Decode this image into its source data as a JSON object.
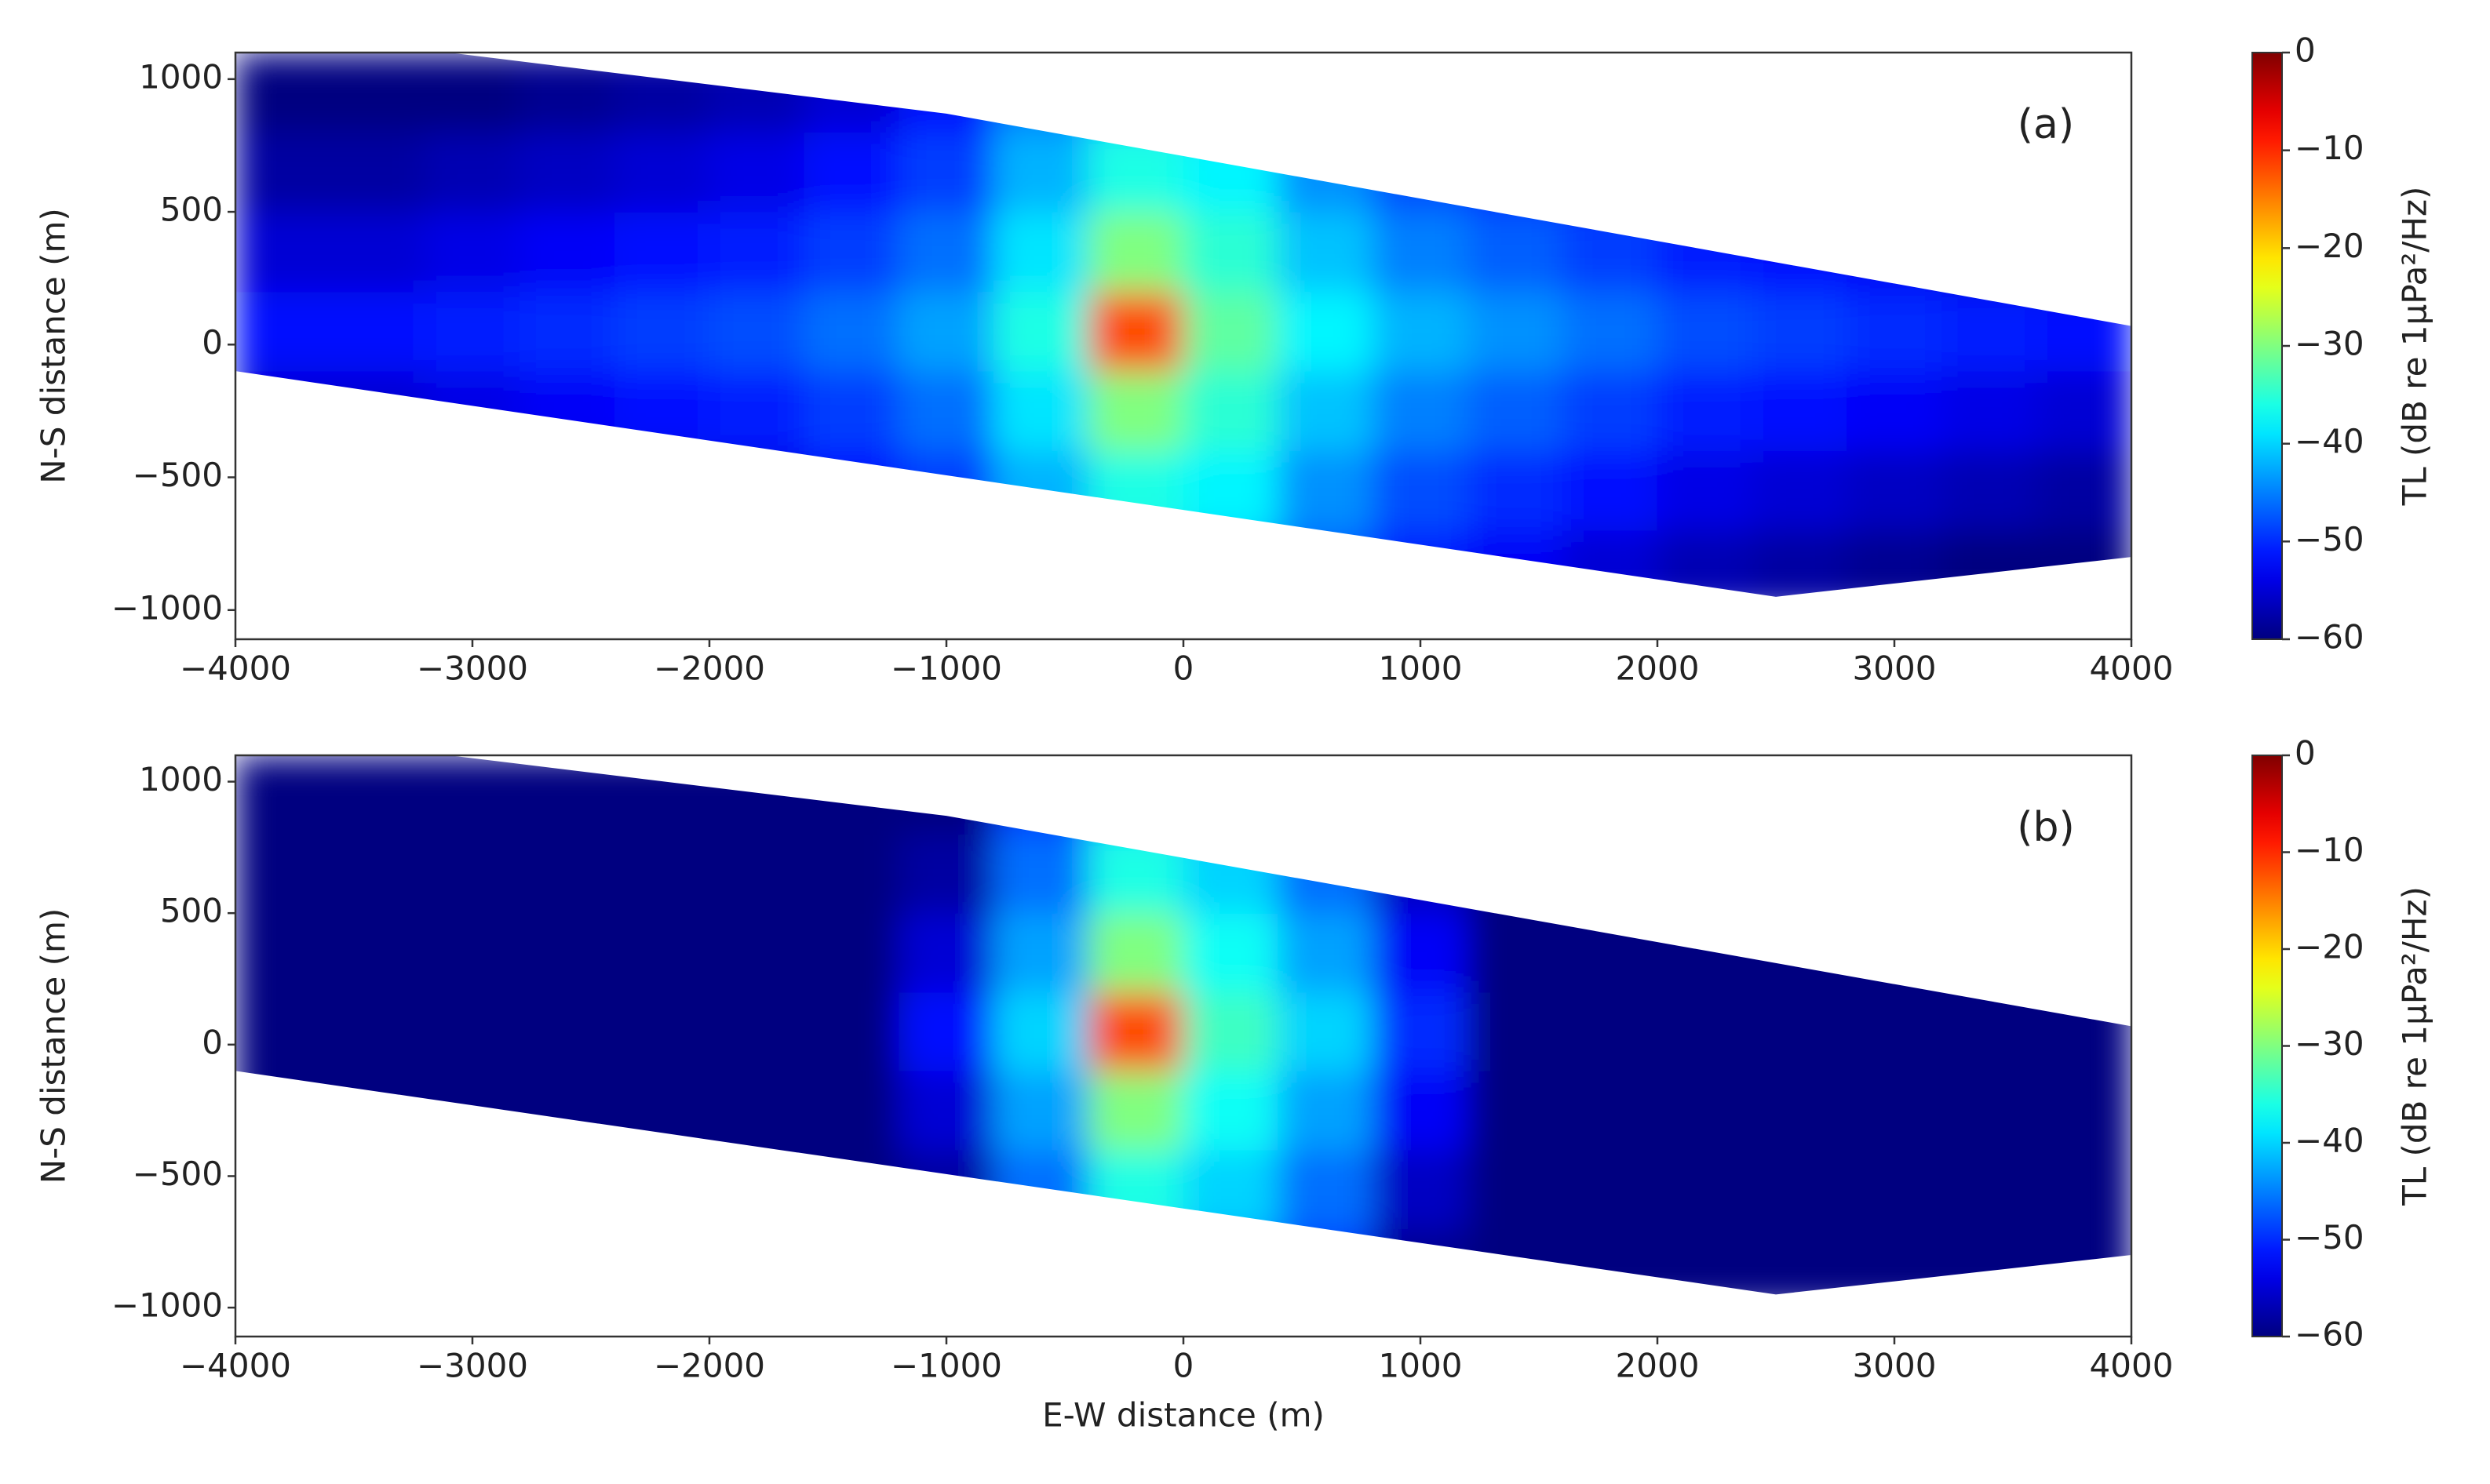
{
  "chart_data": [
    {
      "type": "heatmap",
      "panel_label": "(a)",
      "ylabel": "N-S distance (m)",
      "xlim": [
        -4000,
        4000
      ],
      "ylim": [
        -1110,
        1100
      ],
      "xticks": [
        {
          "value": -4000,
          "label": "−4000"
        },
        {
          "value": -3000,
          "label": "−3000"
        },
        {
          "value": -2000,
          "label": "−2000"
        },
        {
          "value": -1000,
          "label": "−1000"
        },
        0,
        1000,
        2000,
        3000,
        4000
      ],
      "yticks": [
        {
          "value": -1000,
          "label": "−1000"
        },
        {
          "value": -500,
          "label": "−500"
        },
        0,
        500,
        1000
      ],
      "boundary": {
        "x": [
          -4000,
          -3100,
          -1000,
          4000,
          4000,
          2500,
          -4000
        ],
        "y": [
          1100,
          1100,
          870,
          70,
          -800,
          -950,
          -100
        ]
      },
      "x_edges": [
        -4000,
        -3600,
        -3200,
        -2800,
        -2400,
        -2000,
        -1600,
        -1200,
        -800,
        -400,
        0,
        400,
        800,
        1200,
        1600,
        2000,
        2400,
        2800,
        3200,
        3600,
        4000
      ],
      "y_edges": [
        -1000,
        -700,
        -400,
        -100,
        200,
        500,
        800,
        1100
      ],
      "z": [
        [
          -60,
          -60,
          -60,
          -59,
          -58,
          -57,
          -55,
          -52,
          -45,
          -40,
          -41,
          -47,
          -51,
          -53,
          -55,
          -57,
          -58,
          -59,
          -60,
          -60
        ],
        [
          -58,
          -58,
          -57,
          -56,
          -55,
          -54,
          -52,
          -49,
          -42,
          -36,
          -38,
          -44,
          -48,
          -50,
          -52,
          -54,
          -55,
          -56,
          -57,
          -58
        ],
        [
          -55,
          -55,
          -54,
          -53,
          -52,
          -51,
          -49,
          -46,
          -39,
          -30,
          -35,
          -41,
          -45,
          -47,
          -49,
          -51,
          -52,
          -53,
          -54,
          -55
        ],
        [
          -52,
          -52,
          -51,
          -50,
          -49,
          -48,
          -46,
          -43,
          -36,
          -12,
          -32,
          -38,
          -42,
          -44,
          -46,
          -48,
          -49,
          -50,
          -51,
          -52
        ],
        [
          -55,
          -55,
          -54,
          -53,
          -52,
          -51,
          -49,
          -46,
          -39,
          -30,
          -35,
          -41,
          -45,
          -47,
          -49,
          -51,
          -52,
          -53,
          -54,
          -55
        ],
        [
          -58,
          -58,
          -57,
          -56,
          -55,
          -54,
          -52,
          -49,
          -42,
          -36,
          -38,
          -44,
          -48,
          -50,
          -52,
          -54,
          -55,
          -56,
          -57,
          -58
        ],
        [
          -60,
          -60,
          -60,
          -59,
          -58,
          -57,
          -55,
          -52,
          -45,
          -40,
          -41,
          -47,
          -51,
          -53,
          -55,
          -57,
          -58,
          -59,
          -60,
          -60
        ]
      ],
      "colorbar": {
        "label": "TL (dB re 1μPa²/Hz)",
        "colormap": "jet",
        "clim": [
          -60,
          0
        ],
        "ticks": [
          0,
          {
            "value": -10,
            "label": "−10"
          },
          {
            "value": -20,
            "label": "−20"
          },
          {
            "value": -30,
            "label": "−30"
          },
          {
            "value": -40,
            "label": "−40"
          },
          {
            "value": -50,
            "label": "−50"
          },
          {
            "value": -60,
            "label": "−60"
          }
        ]
      }
    },
    {
      "type": "heatmap",
      "panel_label": "(b)",
      "ylabel": "N-S distance (m)",
      "xlabel": "E-W distance (m)",
      "xlim": [
        -4000,
        4000
      ],
      "ylim": [
        -1110,
        1100
      ],
      "xticks": [
        {
          "value": -4000,
          "label": "−4000"
        },
        {
          "value": -3000,
          "label": "−3000"
        },
        {
          "value": -2000,
          "label": "−2000"
        },
        {
          "value": -1000,
          "label": "−1000"
        },
        0,
        1000,
        2000,
        3000,
        4000
      ],
      "yticks": [
        {
          "value": -1000,
          "label": "−1000"
        },
        {
          "value": -500,
          "label": "−500"
        },
        0,
        500,
        1000
      ],
      "boundary": {
        "x": [
          -4000,
          -3100,
          -1000,
          4000,
          4000,
          2500,
          -4000
        ],
        "y": [
          1100,
          1100,
          870,
          70,
          -800,
          -950,
          -100
        ]
      },
      "x_edges": [
        -4000,
        -3600,
        -3200,
        -2800,
        -2400,
        -2000,
        -1600,
        -1200,
        -800,
        -400,
        0,
        400,
        800,
        1200,
        1600,
        2000,
        2400,
        2800,
        3200,
        3600,
        4000
      ],
      "y_edges": [
        -1000,
        -700,
        -400,
        -100,
        200,
        500,
        800,
        1100
      ],
      "z": [
        [
          -60,
          -60,
          -60,
          -60,
          -60,
          -60,
          -60,
          -60,
          -49,
          -40,
          -43,
          -49,
          -59,
          -60,
          -60,
          -60,
          -60,
          -60,
          -60,
          -60
        ],
        [
          -60,
          -60,
          -60,
          -60,
          -60,
          -60,
          -60,
          -58,
          -46,
          -36,
          -40,
          -46,
          -56,
          -60,
          -60,
          -60,
          -60,
          -60,
          -60,
          -60
        ],
        [
          -60,
          -60,
          -60,
          -60,
          -60,
          -60,
          -60,
          -55,
          -43,
          -30,
          -37,
          -43,
          -53,
          -60,
          -60,
          -60,
          -60,
          -60,
          -60,
          -60
        ],
        [
          -60,
          -60,
          -60,
          -60,
          -60,
          -60,
          -60,
          -52,
          -40,
          -12,
          -34,
          -40,
          -50,
          -60,
          -60,
          -60,
          -60,
          -60,
          -60,
          -60
        ],
        [
          -60,
          -60,
          -60,
          -60,
          -60,
          -60,
          -60,
          -55,
          -43,
          -30,
          -37,
          -43,
          -53,
          -60,
          -60,
          -60,
          -60,
          -60,
          -60,
          -60
        ],
        [
          -60,
          -60,
          -60,
          -60,
          -60,
          -60,
          -60,
          -58,
          -46,
          -36,
          -40,
          -46,
          -56,
          -60,
          -60,
          -60,
          -60,
          -60,
          -60,
          -60
        ],
        [
          -60,
          -60,
          -60,
          -60,
          -60,
          -60,
          -60,
          -60,
          -49,
          -40,
          -43,
          -49,
          -59,
          -60,
          -60,
          -60,
          -60,
          -60,
          -60,
          -60
        ]
      ],
      "colorbar": {
        "label": "TL (dB re 1μPa²/Hz)",
        "colormap": "jet",
        "clim": [
          -60,
          0
        ],
        "ticks": [
          0,
          {
            "value": -10,
            "label": "−10"
          },
          {
            "value": -20,
            "label": "−20"
          },
          {
            "value": -30,
            "label": "−30"
          },
          {
            "value": -40,
            "label": "−40"
          },
          {
            "value": -50,
            "label": "−50"
          },
          {
            "value": -60,
            "label": "−60"
          }
        ]
      }
    }
  ]
}
